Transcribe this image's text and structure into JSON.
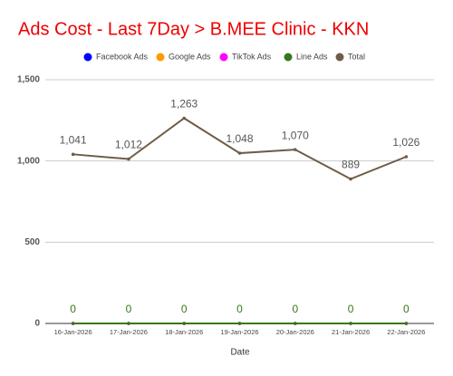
{
  "chart_data": {
    "type": "line",
    "title": "Ads Cost - Last 7Day > B.MEE Clinic - KKN",
    "x_label": "Date",
    "categories": [
      "16-Jan-2026",
      "17-Jan-2026",
      "18-Jan-2026",
      "19-Jan-2026",
      "20-Jan-2026",
      "21-Jan-2026",
      "22-Jan-2026"
    ],
    "series": [
      {
        "name": "Facebook Ads",
        "color": "#0000ff",
        "values": [
          0,
          0,
          0,
          0,
          0,
          0,
          0
        ]
      },
      {
        "name": "Google Ads",
        "color": "#ff9900",
        "values": [
          0,
          0,
          0,
          0,
          0,
          0,
          0
        ]
      },
      {
        "name": "TikTok Ads",
        "color": "#ff00ff",
        "values": [
          0,
          0,
          0,
          0,
          0,
          0,
          0
        ]
      },
      {
        "name": "Line Ads",
        "color": "#38761d",
        "values": [
          0,
          0,
          0,
          0,
          0,
          0,
          0
        ]
      },
      {
        "name": "Total",
        "color": "#6f5c47",
        "values": [
          1041,
          1012,
          1263,
          1048,
          1070,
          889,
          1026
        ],
        "value_labels": [
          "1,041",
          "1,012",
          "1,263",
          "1,048",
          "1,070",
          "889",
          "1,026"
        ]
      }
    ],
    "ylim": [
      0,
      1500
    ],
    "yticks": [
      0,
      500,
      {
        "value": 1000,
        "label": "1,000"
      },
      {
        "value": 1500,
        "label": "1,500"
      }
    ],
    "grid": true,
    "legend": "top"
  }
}
